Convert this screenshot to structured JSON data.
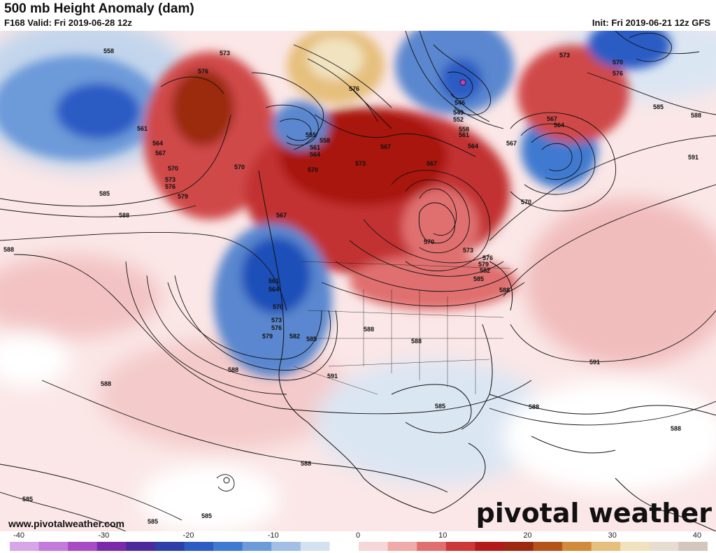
{
  "header": {
    "title": "500 mb Height Anomaly (dam)",
    "valid": "F168 Valid: Fri 2019-06-28 12z",
    "init": "Init: Fri 2019-06-21 12z GFS"
  },
  "footer": {
    "website": "www.pivotalweather.com",
    "logo": "pivotal weather"
  },
  "colorbar": {
    "ticks": [
      "-40",
      "-30",
      "-20",
      "-10",
      "0",
      "10",
      "20",
      "30",
      "40"
    ],
    "colors": [
      "#d6a6e8",
      "#c27bd9",
      "#a84bc4",
      "#7a2aa8",
      "#4c2a9c",
      "#2f3fa8",
      "#2c5cc4",
      "#3f7ad0",
      "#6d9ad9",
      "#a3bfe5",
      "#d4e1f1",
      "#ffffff",
      "#f7d6d6",
      "#f0aaaa",
      "#e07070",
      "#cc3838",
      "#b31a1a",
      "#9c2a10",
      "#b5541a",
      "#d18b3b",
      "#e6bf7d",
      "#f1e2bd",
      "#e7dcd0",
      "#d2c6bd"
    ]
  },
  "map": {
    "contour_labels": [
      "558",
      "561",
      "564",
      "567",
      "570",
      "573",
      "576",
      "579",
      "582",
      "585",
      "588",
      "591",
      "555",
      "546",
      "549",
      "552"
    ],
    "anomaly_colors": {
      "strong_positive": "#9c1a12",
      "positive": "#d04a4a",
      "weak_positive": "#f2b6b6",
      "faint_positive": "#f9dede",
      "strong_negative": "#1f4fb8",
      "negative": "#5a87cf",
      "weak_negative": "#a9c3e6",
      "faint_negative": "#dbe6f3",
      "peak_positive": "#f1e3c0",
      "brown": "#8a3a12"
    }
  }
}
